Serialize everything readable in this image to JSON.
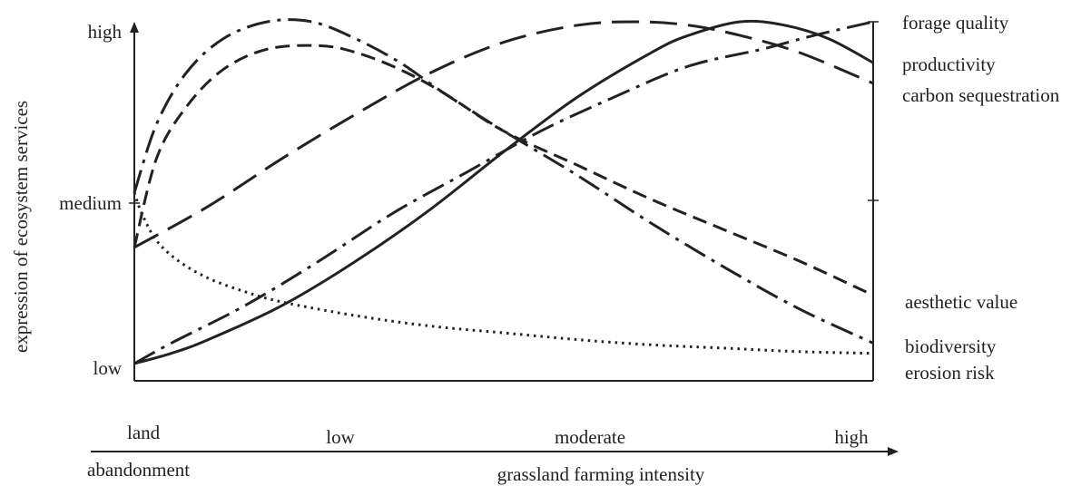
{
  "chart_data": {
    "type": "line",
    "ylabel": "expression of ecosystem services",
    "xlabel": "grassland farming intensity",
    "y_ticks": [
      "low",
      "medium",
      "high"
    ],
    "x_ticks": [
      "land",
      "low",
      "moderate",
      "high"
    ],
    "x_ticks_extra": "abandonment",
    "ylim": [
      0,
      1
    ],
    "xlim": [
      0,
      1
    ],
    "grid": false,
    "series": [
      {
        "name": "forage quality",
        "dash": "dashdot",
        "points": [
          [
            0,
            0
          ],
          [
            0.05,
            0.06
          ],
          [
            0.15,
            0.17
          ],
          [
            0.25,
            0.3
          ],
          [
            0.35,
            0.44
          ],
          [
            0.45,
            0.56
          ],
          [
            0.55,
            0.68
          ],
          [
            0.65,
            0.78
          ],
          [
            0.75,
            0.87
          ],
          [
            0.85,
            0.92
          ],
          [
            0.92,
            0.96
          ],
          [
            1,
            1
          ]
        ]
      },
      {
        "name": "productivity",
        "dash": "solid",
        "points": [
          [
            0,
            0
          ],
          [
            0.05,
            0.03
          ],
          [
            0.1,
            0.07
          ],
          [
            0.2,
            0.17
          ],
          [
            0.3,
            0.3
          ],
          [
            0.4,
            0.45
          ],
          [
            0.5,
            0.62
          ],
          [
            0.6,
            0.78
          ],
          [
            0.7,
            0.91
          ],
          [
            0.75,
            0.96
          ],
          [
            0.82,
            1.0
          ],
          [
            0.88,
            0.99
          ],
          [
            0.94,
            0.95
          ],
          [
            1,
            0.88
          ]
        ]
      },
      {
        "name": "carbon sequestration",
        "dash": "longdash",
        "points": [
          [
            0,
            0.34
          ],
          [
            0.1,
            0.46
          ],
          [
            0.2,
            0.6
          ],
          [
            0.3,
            0.73
          ],
          [
            0.4,
            0.85
          ],
          [
            0.5,
            0.94
          ],
          [
            0.6,
            0.99
          ],
          [
            0.68,
            1.0
          ],
          [
            0.75,
            0.99
          ],
          [
            0.82,
            0.96
          ],
          [
            0.9,
            0.91
          ],
          [
            1,
            0.82
          ]
        ]
      },
      {
        "name": "aesthetic value",
        "dash": "dash",
        "points": [
          [
            0,
            0.34
          ],
          [
            0.03,
            0.6
          ],
          [
            0.07,
            0.75
          ],
          [
            0.12,
            0.86
          ],
          [
            0.18,
            0.92
          ],
          [
            0.25,
            0.93
          ],
          [
            0.3,
            0.91
          ],
          [
            0.36,
            0.86
          ],
          [
            0.42,
            0.79
          ],
          [
            0.5,
            0.68
          ],
          [
            0.6,
            0.58
          ],
          [
            0.7,
            0.48
          ],
          [
            0.8,
            0.39
          ],
          [
            0.9,
            0.3
          ],
          [
            1,
            0.2
          ]
        ]
      },
      {
        "name": "biodiversity",
        "dash": "dashdot",
        "points": [
          [
            0,
            0.5
          ],
          [
            0.03,
            0.7
          ],
          [
            0.07,
            0.85
          ],
          [
            0.12,
            0.95
          ],
          [
            0.18,
            1.0
          ],
          [
            0.24,
            1.0
          ],
          [
            0.3,
            0.95
          ],
          [
            0.36,
            0.88
          ],
          [
            0.42,
            0.79
          ],
          [
            0.5,
            0.68
          ],
          [
            0.6,
            0.55
          ],
          [
            0.7,
            0.41
          ],
          [
            0.8,
            0.28
          ],
          [
            0.9,
            0.16
          ],
          [
            1,
            0.06
          ]
        ]
      },
      {
        "name": "erosion risk",
        "dash": "dotted",
        "points": [
          [
            0,
            0.5
          ],
          [
            0.01,
            0.44
          ],
          [
            0.03,
            0.36
          ],
          [
            0.06,
            0.3
          ],
          [
            0.1,
            0.25
          ],
          [
            0.15,
            0.21
          ],
          [
            0.2,
            0.18
          ],
          [
            0.3,
            0.14
          ],
          [
            0.4,
            0.11
          ],
          [
            0.5,
            0.09
          ],
          [
            0.6,
            0.07
          ],
          [
            0.7,
            0.055
          ],
          [
            0.8,
            0.045
          ],
          [
            0.9,
            0.035
          ],
          [
            1,
            0.03
          ]
        ]
      }
    ]
  }
}
